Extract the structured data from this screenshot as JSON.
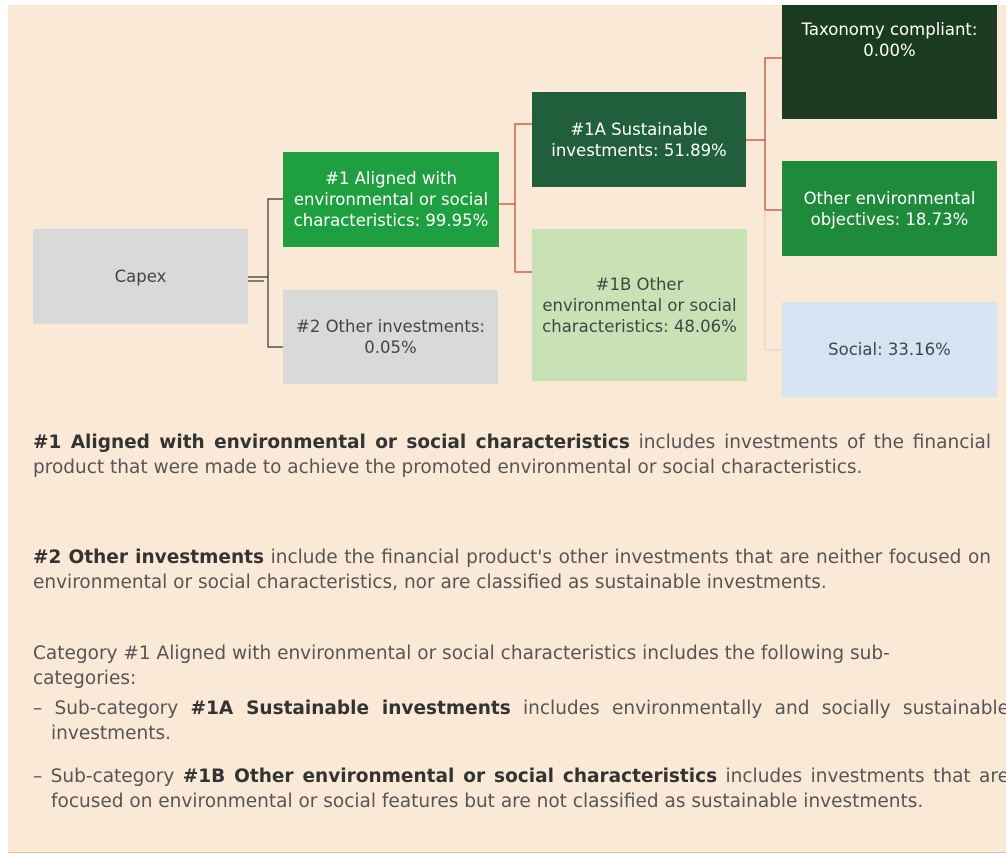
{
  "nodes": [
    {
      "label": "Capex"
    },
    {
      "label": "#1 Aligned with environmental or social characteristics: 99.95%"
    },
    {
      "label": "#2 Other investments: 0.05%"
    },
    {
      "label": "#1A Sustainable investments: 51.89%"
    },
    {
      "label": "#1B Other environmental or social characteristics: 48.06%"
    },
    {
      "label": "Taxonomy compliant: 0.00%"
    },
    {
      "label": "Other environmental objectives: 18.73%"
    },
    {
      "label": "Social: 33.16%"
    }
  ],
  "notes": [
    {
      "bold": "#1 Aligned with environmental or social characteristics",
      "text": " includes investments of the financial product that were made to achieve the promoted environmental or social characteristics."
    },
    {
      "bold": "#2 Other investments",
      "text": " include the financial product's other investments that are neither focused on environmental or social characteristics, nor are classified as sustainable investments."
    }
  ],
  "category_intro": "Category #1 Aligned with environmental or social characteristics includes the following sub-categories:",
  "subcategories": [
    {
      "prefix": "– Sub-category ",
      "bold": "#1A Sustainable investments",
      "text": " includes environmentally and socially sustainable investments."
    },
    {
      "prefix": "– Sub-category ",
      "bold": "#1B Other environmental or social characteristics",
      "text": " includes investments that are focused on environmental or social features but are not classified as sustainable investments."
    }
  ]
}
